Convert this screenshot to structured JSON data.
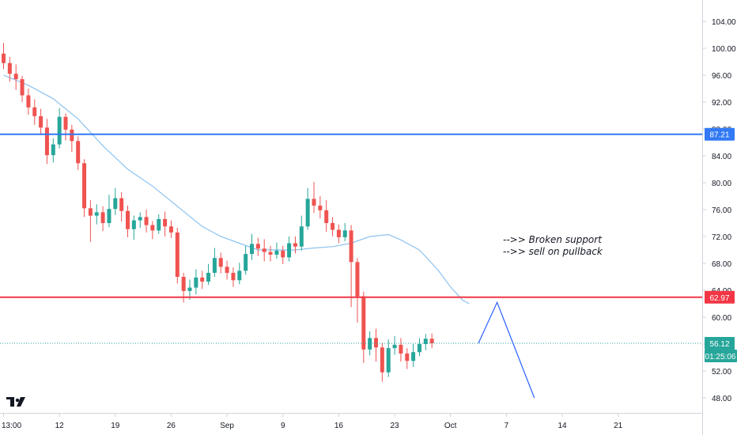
{
  "colors": {
    "up": "#26a69a",
    "down": "#ef5350",
    "ma": "#8cc2f0",
    "support_line": "#3179f5",
    "broken_line": "#f23645",
    "projection": "#2962ff",
    "current_price": "#26a69a",
    "axis_text": "#131722",
    "border": "#d1d4dc"
  },
  "icons": {
    "logo": "tradingview-logo-icon"
  },
  "chart_data": {
    "type": "candlestick",
    "y_axis": {
      "ticks": [
        "104.00",
        "100.00",
        "96.00",
        "92.00",
        "88.00",
        "84.00",
        "80.00",
        "76.00",
        "72.00",
        "68.00",
        "64.00",
        "60.00",
        "56.00",
        "52.00",
        "48.00"
      ],
      "tick_values": [
        104,
        100,
        96,
        92,
        88,
        84,
        80,
        76,
        72,
        68,
        64,
        60,
        56,
        52,
        48
      ],
      "range": [
        45,
        106
      ]
    },
    "x_axis": {
      "ticks": [
        "13:00",
        "12",
        "19",
        "26",
        "Sep",
        "9",
        "16",
        "23",
        "Oct",
        "7",
        "14",
        "21"
      ],
      "tick_bars": [
        0,
        9,
        18,
        27,
        36,
        45,
        54,
        63,
        72,
        81,
        90,
        99
      ]
    },
    "price_labels": [
      {
        "name": "resistance",
        "text": "87.21",
        "value": 87.21
      },
      {
        "name": "broken-support",
        "text": "62.97",
        "value": 62.97
      },
      {
        "name": "last-price",
        "text": "56.12",
        "value": 56.12
      }
    ],
    "countdown": "01:25:06",
    "horizontal_lines": [
      {
        "name": "resistance",
        "value": 87.21
      },
      {
        "name": "broken-support",
        "value": 62.97
      }
    ],
    "last_price": 56.12,
    "annotation_lines": [
      "-->> Broken support",
      "-->> sell on pullback"
    ],
    "projection_path": [
      [
        76.5,
        56.12
      ],
      [
        79.5,
        62.2
      ],
      [
        85.5,
        48.0
      ]
    ],
    "ma_series": [
      [
        0,
        96.0
      ],
      [
        4,
        94.5
      ],
      [
        8,
        92.5
      ],
      [
        12,
        89.5
      ],
      [
        16,
        85.5
      ],
      [
        20,
        82.0
      ],
      [
        24,
        79.5
      ],
      [
        28,
        76.5
      ],
      [
        32,
        73.5
      ],
      [
        35,
        72.0
      ],
      [
        38,
        71.0
      ],
      [
        41,
        70.0
      ],
      [
        44,
        70.0
      ],
      [
        47,
        70.0
      ],
      [
        50,
        70.3
      ],
      [
        53,
        70.5
      ],
      [
        56,
        71.0
      ],
      [
        59,
        72.0
      ],
      [
        62,
        72.3
      ],
      [
        64,
        71.5
      ],
      [
        67,
        70.0
      ],
      [
        70,
        67.0
      ],
      [
        72,
        64.5
      ],
      [
        74,
        62.5
      ],
      [
        75,
        62.0
      ]
    ],
    "candles": [
      [
        99.2,
        97.8,
        100.8,
        96.9
      ],
      [
        97.8,
        96.2,
        98.7,
        95.0
      ],
      [
        96.2,
        95.4,
        97.6,
        93.8
      ],
      [
        95.4,
        93.0,
        95.9,
        92.0
      ],
      [
        93.0,
        91.2,
        94.0,
        90.1
      ],
      [
        91.2,
        89.9,
        92.4,
        88.6
      ],
      [
        89.9,
        88.2,
        91.0,
        87.2
      ],
      [
        88.2,
        84.1,
        89.5,
        82.8
      ],
      [
        84.1,
        85.7,
        86.6,
        83.0
      ],
      [
        85.7,
        89.8,
        91.1,
        85.1
      ],
      [
        89.8,
        87.9,
        90.3,
        86.3
      ],
      [
        87.9,
        86.2,
        88.6,
        84.6
      ],
      [
        86.2,
        82.9,
        86.9,
        81.9
      ],
      [
        82.9,
        76.2,
        83.5,
        74.9
      ],
      [
        76.2,
        75.1,
        77.4,
        71.2
      ],
      [
        75.1,
        75.6,
        76.8,
        73.8
      ],
      [
        75.6,
        74.0,
        76.5,
        72.8
      ],
      [
        74.0,
        76.1,
        78.2,
        73.4
      ],
      [
        76.1,
        77.7,
        79.2,
        75.2
      ],
      [
        77.7,
        75.8,
        78.6,
        74.2
      ],
      [
        75.8,
        73.1,
        76.6,
        71.9
      ],
      [
        73.1,
        74.4,
        75.1,
        71.5
      ],
      [
        74.4,
        74.9,
        75.6,
        73.3
      ],
      [
        74.9,
        73.7,
        76.0,
        72.6
      ],
      [
        73.7,
        72.9,
        74.3,
        71.6
      ],
      [
        72.9,
        74.6,
        75.3,
        72.4
      ],
      [
        74.6,
        73.5,
        75.7,
        72.0
      ],
      [
        73.5,
        72.6,
        74.4,
        71.8
      ],
      [
        72.6,
        66.0,
        73.3,
        65.0
      ],
      [
        66.0,
        63.9,
        66.6,
        62.2
      ],
      [
        63.9,
        64.4,
        65.6,
        62.6
      ],
      [
        64.4,
        65.9,
        67.1,
        63.4
      ],
      [
        65.9,
        65.3,
        66.9,
        64.2
      ],
      [
        65.3,
        66.6,
        67.9,
        64.8
      ],
      [
        66.6,
        68.8,
        70.3,
        66.0
      ],
      [
        68.8,
        67.5,
        69.6,
        66.5
      ],
      [
        67.5,
        66.6,
        68.4,
        65.6
      ],
      [
        66.6,
        65.5,
        67.4,
        64.5
      ],
      [
        65.5,
        66.9,
        68.1,
        64.9
      ],
      [
        66.9,
        69.4,
        70.6,
        66.3
      ],
      [
        69.4,
        70.9,
        72.4,
        68.5
      ],
      [
        70.9,
        70.2,
        71.8,
        69.1
      ],
      [
        70.2,
        69.7,
        71.6,
        68.3
      ],
      [
        69.7,
        69.3,
        70.6,
        68.3
      ],
      [
        69.3,
        69.9,
        71.1,
        68.7
      ],
      [
        69.9,
        68.9,
        70.6,
        67.9
      ],
      [
        68.9,
        71.0,
        72.0,
        68.3
      ],
      [
        71.0,
        70.5,
        72.0,
        69.5
      ],
      [
        70.5,
        73.5,
        75.1,
        69.9
      ],
      [
        73.5,
        77.6,
        79.2,
        73.0
      ],
      [
        77.6,
        76.6,
        80.1,
        75.5
      ],
      [
        76.6,
        75.9,
        78.0,
        74.7
      ],
      [
        75.9,
        74.0,
        77.4,
        72.7
      ],
      [
        74.0,
        73.0,
        74.9,
        72.0
      ],
      [
        73.0,
        71.9,
        73.8,
        71.0
      ],
      [
        71.9,
        72.9,
        74.0,
        71.3
      ],
      [
        72.9,
        68.2,
        73.7,
        61.5
      ],
      [
        68.2,
        63.1,
        68.8,
        59.2
      ],
      [
        63.1,
        55.2,
        63.8,
        53.2
      ],
      [
        55.2,
        56.9,
        57.9,
        54.3
      ],
      [
        56.9,
        55.5,
        58.3,
        53.4
      ],
      [
        55.5,
        51.8,
        56.2,
        50.4
      ],
      [
        51.8,
        55.4,
        56.7,
        51.1
      ],
      [
        55.4,
        55.9,
        57.2,
        54.4
      ],
      [
        55.9,
        54.6,
        56.9,
        53.4
      ],
      [
        54.6,
        53.5,
        55.4,
        52.3
      ],
      [
        53.5,
        54.8,
        56.0,
        52.6
      ],
      [
        54.8,
        56.0,
        56.9,
        54.2
      ],
      [
        56.0,
        56.8,
        57.5,
        55.1
      ],
      [
        56.8,
        56.12,
        57.6,
        55.4
      ]
    ]
  }
}
